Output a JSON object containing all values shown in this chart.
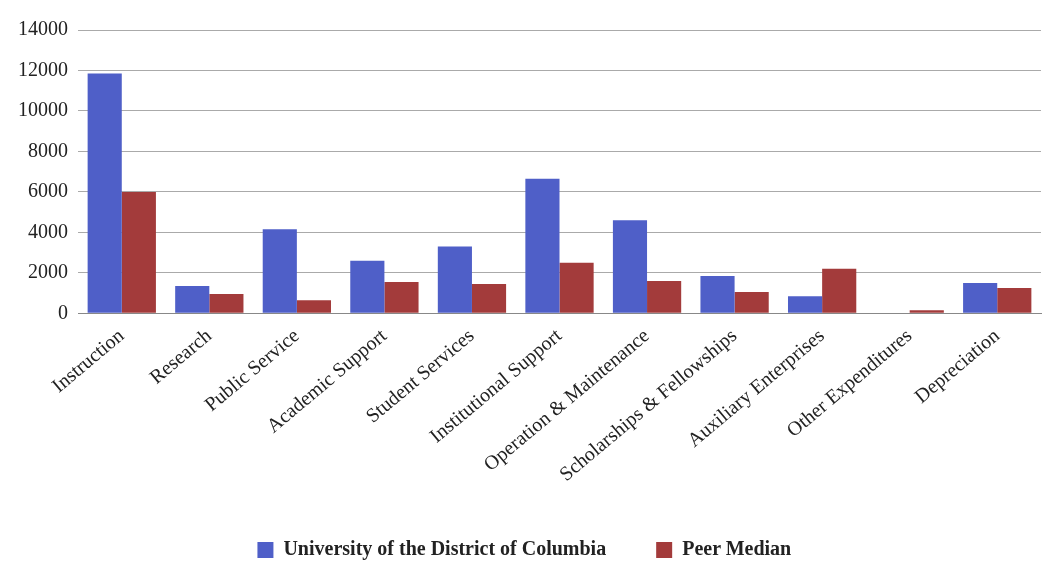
{
  "chart_data": {
    "type": "bar",
    "categories": [
      "Instruction",
      "Research",
      "Public Service",
      "Academic Support",
      "Student Services",
      "Institutional Support",
      "Operation & Maintenance",
      "Scholarships & Fellowships",
      "Auxiliary Enterprises",
      "Other Expenditures",
      "Depreciation"
    ],
    "series": [
      {
        "name": "University of the District of Columbia",
        "color": "#4f5fc8",
        "values": [
          11850,
          1350,
          4150,
          2600,
          3300,
          6650,
          4600,
          1850,
          850,
          0,
          1500
        ]
      },
      {
        "name": "Peer Median",
        "color": "#a33b3b",
        "values": [
          6000,
          950,
          650,
          1550,
          1450,
          2500,
          1600,
          1050,
          2200,
          150,
          1250
        ]
      }
    ],
    "ylim": [
      0,
      14000
    ],
    "yticks": [
      0,
      2000,
      4000,
      6000,
      8000,
      10000,
      12000,
      14000
    ],
    "grid": "y",
    "legend": "bottom"
  }
}
